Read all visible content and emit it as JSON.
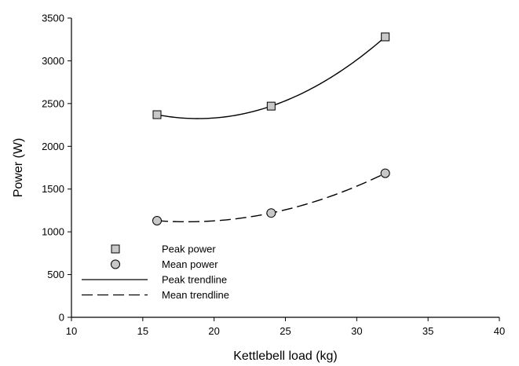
{
  "chart_data": {
    "type": "scatter",
    "xlabel": "Kettlebell load (kg)",
    "ylabel": "Power (W)",
    "xlim": [
      10,
      40
    ],
    "ylim": [
      0,
      3500
    ],
    "xticks": [
      10,
      15,
      20,
      25,
      30,
      35,
      40
    ],
    "yticks": [
      0,
      500,
      1000,
      1500,
      2000,
      2500,
      3000,
      3500
    ],
    "grid": false,
    "legend_placement": "bottom-left",
    "series": [
      {
        "name": "Peak power",
        "kind": "points",
        "marker": "square",
        "color": "#c8c8c8",
        "x": [
          16,
          24,
          32
        ],
        "y": [
          2370,
          2470,
          3280
        ]
      },
      {
        "name": "Mean power",
        "kind": "points",
        "marker": "circle",
        "color": "#c8c8c8",
        "x": [
          16,
          24,
          32
        ],
        "y": [
          1130,
          1220,
          1685
        ]
      },
      {
        "name": "Peak trendline",
        "kind": "line",
        "style": "solid",
        "color": "#000000",
        "fit": "quadratic",
        "fit_of": "Peak power",
        "x_range": [
          16,
          32
        ]
      },
      {
        "name": "Mean trendline",
        "kind": "line",
        "style": "dashed",
        "color": "#000000",
        "fit": "quadratic",
        "fit_of": "Mean power",
        "x_range": [
          16,
          32
        ]
      }
    ]
  }
}
